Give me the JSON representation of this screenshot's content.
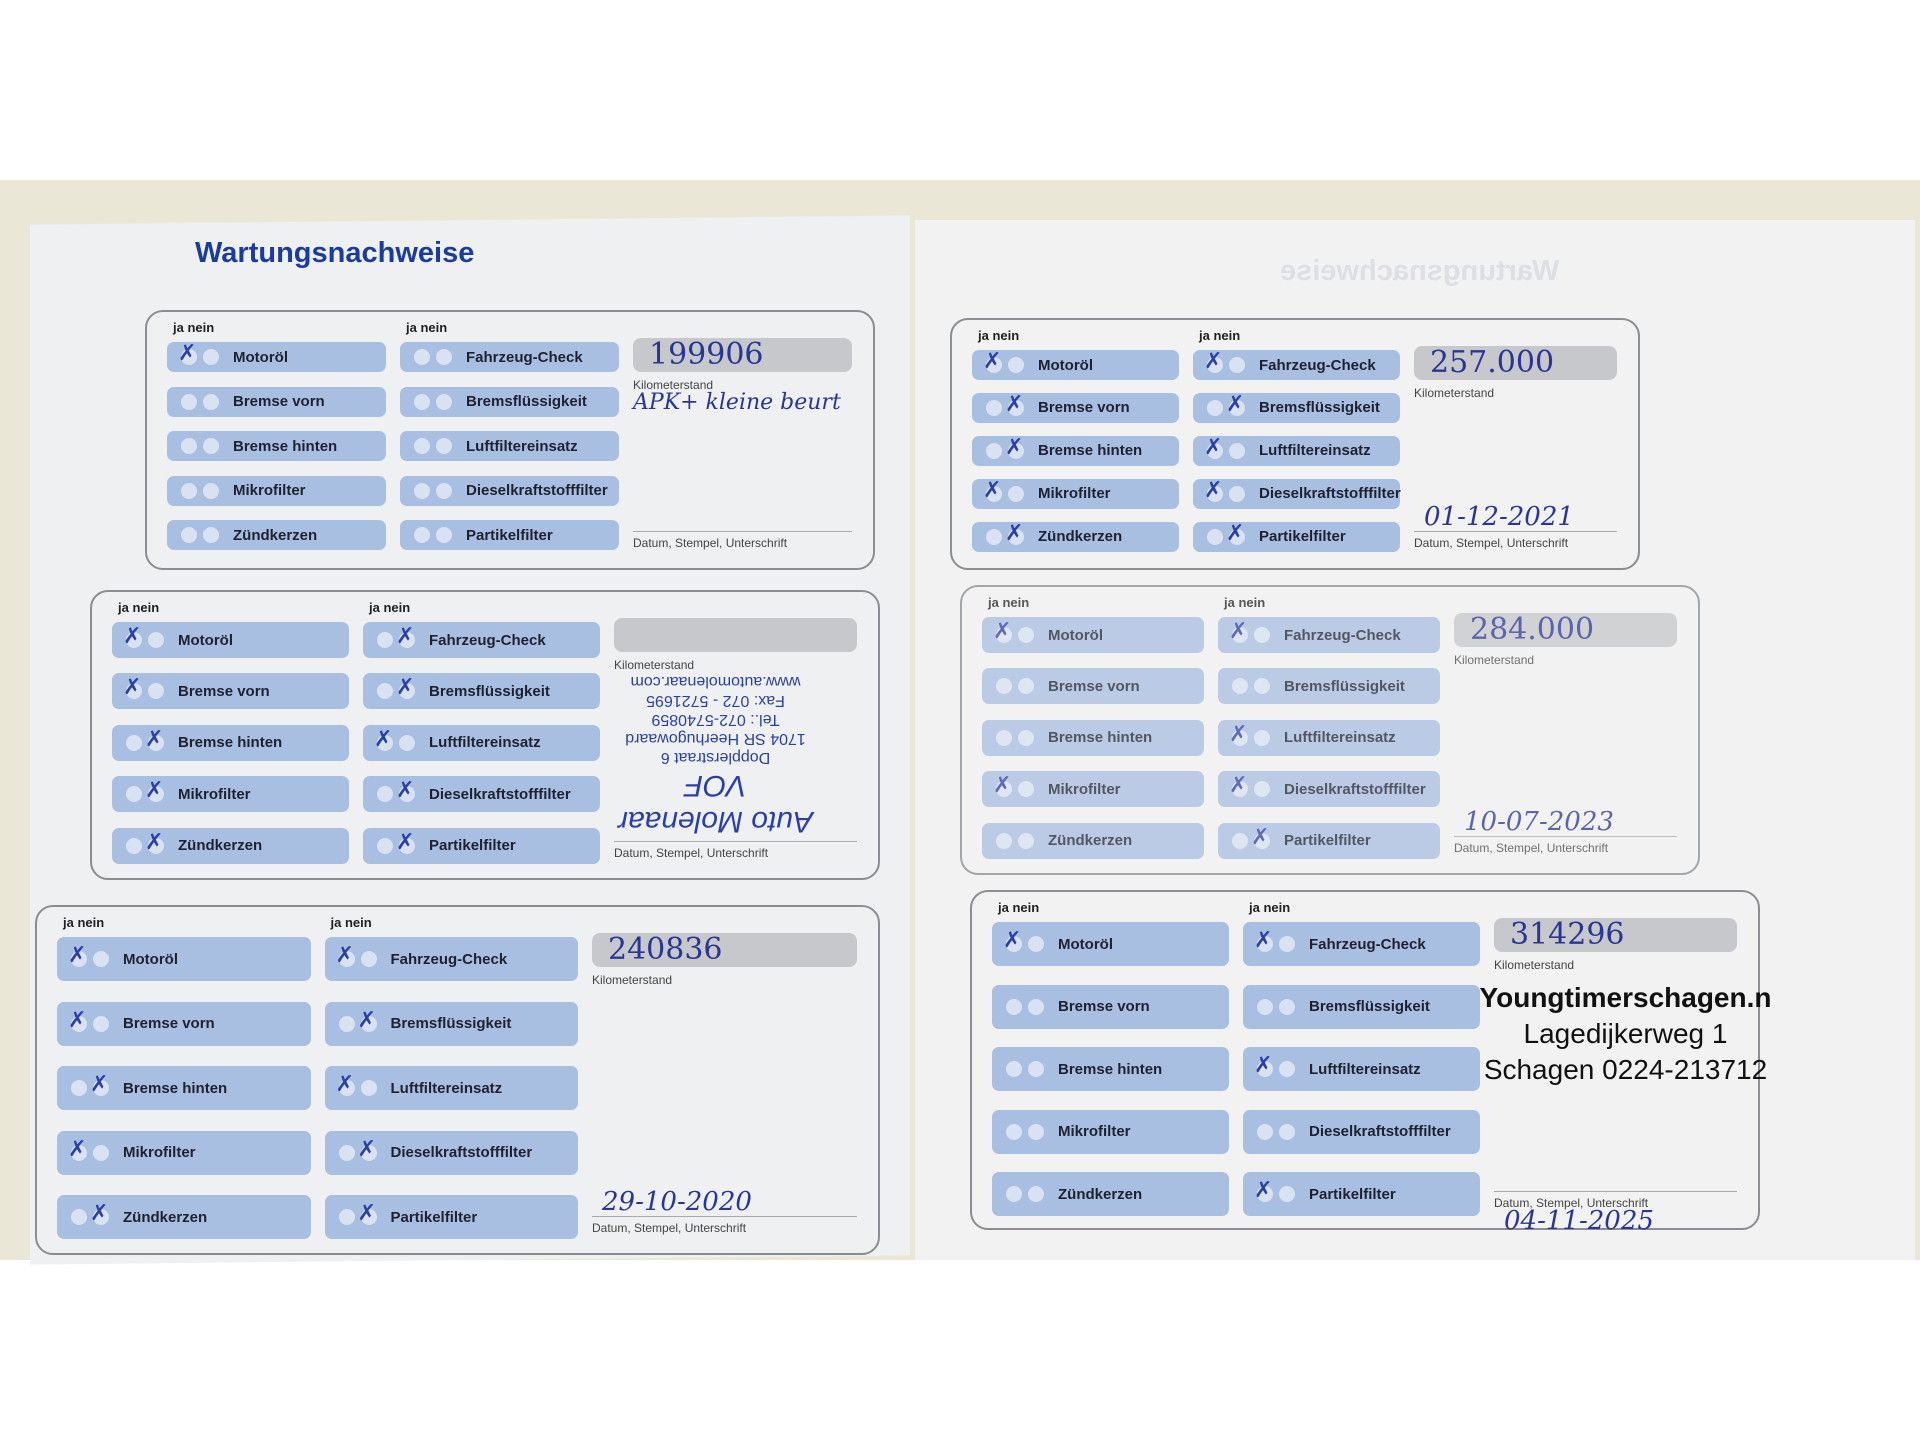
{
  "title": "Wartungsnachweise",
  "labels": {
    "ja": "ja",
    "nein": "nein",
    "km": "Kilometerstand",
    "sign": "Datum, Stempel, Unterschrift"
  },
  "colors": {
    "item": "#a9bfe2",
    "ink": "#2a3596",
    "title": "#1b3c9c"
  },
  "records": [
    {
      "km": "199906",
      "note": "APK+ kleine beurt",
      "date": "",
      "items": {
        "Motoröl": "ja",
        "Bremse vorn": "",
        "Bremse hinten": "",
        "Mikrofilter": "",
        "Zündkerzen": "",
        "Fahrzeug-Check": "",
        "Bremsflüssigkeit": "",
        "Luftfiltereinsatz": "",
        "Dieselkraftstofffilter": "",
        "Partikelfilter": ""
      }
    },
    {
      "km": "257.000",
      "note": "",
      "date": "01-12-2021",
      "items": {
        "Motoröl": "ja",
        "Bremse vorn": "nein",
        "Bremse hinten": "nein",
        "Mikrofilter": "ja",
        "Zündkerzen": "nein",
        "Fahrzeug-Check": "ja",
        "Bremsflüssigkeit": "nein",
        "Luftfiltereinsatz": "ja",
        "Dieselkraftstofffilter": "ja",
        "Partikelfilter": "nein"
      }
    },
    {
      "km": "",
      "note": "",
      "date": "",
      "items": {
        "Motoröl": "ja",
        "Bremse vorn": "ja",
        "Bremse hinten": "nein",
        "Mikrofilter": "nein",
        "Zündkerzen": "nein",
        "Fahrzeug-Check": "nein",
        "Bremsflüssigkeit": "nein",
        "Luftfiltereinsatz": "ja",
        "Dieselkraftstofffilter": "nein",
        "Partikelfilter": "nein"
      },
      "stamp": {
        "name": "Auto Molenaar VOF",
        "lines": [
          "Dopplerstraat 6",
          "1704 SR Heerhugowaard",
          "Tel.: 072-5740859",
          "Fax: 072 - 5721695",
          "www.automolenaar.com"
        ]
      }
    },
    {
      "km": "284.000",
      "note": "",
      "date": "10-07-2023",
      "items": {
        "Motoröl": "ja",
        "Bremse vorn": "",
        "Bremse hinten": "",
        "Mikrofilter": "ja",
        "Zündkerzen": "",
        "Fahrzeug-Check": "ja",
        "Bremsflüssigkeit": "",
        "Luftfiltereinsatz": "ja",
        "Dieselkraftstofffilter": "ja",
        "Partikelfilter": "nein"
      }
    },
    {
      "km": "240836",
      "note": "",
      "date": "29-10-2020",
      "items": {
        "Motoröl": "ja",
        "Bremse vorn": "ja",
        "Bremse hinten": "nein",
        "Mikrofilter": "ja",
        "Zündkerzen": "nein",
        "Fahrzeug-Check": "ja",
        "Bremsflüssigkeit": "nein",
        "Luftfiltereinsatz": "ja",
        "Dieselkraftstofffilter": "nein",
        "Partikelfilter": "nein"
      }
    },
    {
      "km": "314296",
      "note": "",
      "date": "04-11-2025",
      "items": {
        "Motoröl": "ja",
        "Bremse vorn": "",
        "Bremse hinten": "",
        "Mikrofilter": "",
        "Zündkerzen": "",
        "Fahrzeug-Check": "ja",
        "Bremsflüssigkeit": "",
        "Luftfiltereinsatz": "ja",
        "Dieselkraftstofffilter": "",
        "Partikelfilter": "ja"
      },
      "stamp": {
        "lines": [
          "Youngtimerschagen.n",
          "Lagedijkerweg  1",
          "Schagen 0224-213712"
        ]
      }
    }
  ]
}
